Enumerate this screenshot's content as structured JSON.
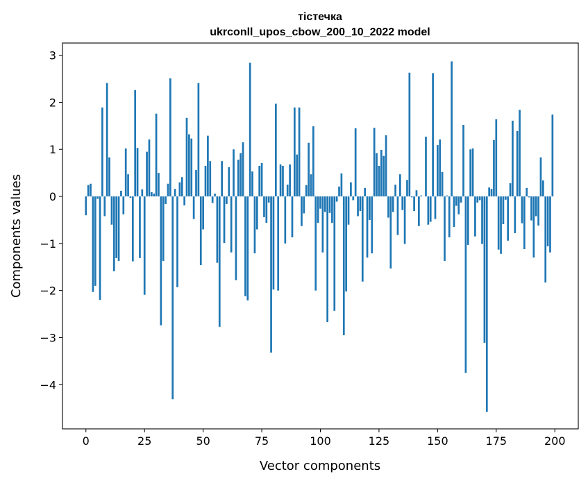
{
  "chart_data": {
    "type": "bar",
    "title": "тістечка",
    "subtitle": "ukrconll_upos_cbow_200_10_2022 model",
    "xlabel": "Vector components",
    "ylabel": "Components values",
    "xlim": [
      -10,
      210
    ],
    "ylim": [
      -4.94,
      3.26
    ],
    "xticks": [
      0,
      25,
      50,
      75,
      100,
      125,
      150,
      175,
      200
    ],
    "yticks": [
      -4,
      -3,
      -2,
      -1,
      0,
      1,
      2,
      3
    ],
    "xtick_labels": [
      "0",
      "25",
      "50",
      "75",
      "100",
      "125",
      "150",
      "175",
      "200"
    ],
    "ytick_labels": [
      "−4",
      "−3",
      "−2",
      "−1",
      "0",
      "1",
      "2",
      "3"
    ],
    "grid": false,
    "color": "#1f77b4",
    "values": [
      -0.4,
      0.24,
      0.27,
      -2.03,
      -1.9,
      -0.05,
      -2.2,
      1.89,
      -0.42,
      2.41,
      0.83,
      -0.6,
      -1.59,
      -1.31,
      -1.37,
      0.12,
      -0.38,
      1.02,
      0.47,
      -0.03,
      -1.38,
      2.26,
      1.03,
      -1.31,
      0.15,
      -2.09,
      0.95,
      1.21,
      0.09,
      0.06,
      1.76,
      0.5,
      -2.74,
      -1.37,
      -0.16,
      0.27,
      2.51,
      -4.31,
      0.16,
      -1.93,
      0.3,
      0.41,
      -0.19,
      1.67,
      1.32,
      1.23,
      -0.48,
      0.56,
      2.41,
      -1.46,
      -0.7,
      0.65,
      1.29,
      0.75,
      -0.14,
      0.06,
      -1.41,
      -2.77,
      0.75,
      -0.99,
      -0.16,
      0.62,
      -1.19,
      1.0,
      -1.78,
      0.78,
      0.92,
      1.15,
      -2.12,
      -2.21,
      2.84,
      0.53,
      -1.21,
      -0.7,
      0.65,
      0.71,
      -0.44,
      -0.56,
      -0.13,
      -3.32,
      -1.98,
      1.97,
      -2.0,
      0.68,
      0.65,
      -1.0,
      0.25,
      0.68,
      -0.87,
      1.89,
      0.89,
      1.89,
      -0.63,
      -0.36,
      0.24,
      1.14,
      0.47,
      1.49,
      -2.0,
      -0.56,
      -0.26,
      -1.19,
      -0.33,
      -2.67,
      -0.35,
      -0.56,
      -2.43,
      -0.11,
      0.21,
      0.49,
      -2.95,
      -2.02,
      -0.6,
      0.3,
      -0.08,
      1.45,
      -0.42,
      -0.31,
      -1.81,
      0.18,
      -1.3,
      -0.5,
      -1.21,
      1.46,
      0.92,
      0.65,
      0.99,
      0.86,
      1.3,
      -0.45,
      -1.53,
      -0.33,
      0.25,
      -0.82,
      0.47,
      -0.29,
      -1.01,
      0.35,
      2.63,
      -0.02,
      -0.31,
      0.13,
      -0.63,
      0.02,
      0.0,
      1.27,
      -0.6,
      -0.54,
      2.62,
      -0.48,
      1.09,
      1.21,
      0.52,
      -1.37,
      0.02,
      -0.87,
      2.87,
      -0.65,
      -0.2,
      -0.38,
      -0.13,
      1.52,
      -3.75,
      -1.03,
      1.0,
      1.02,
      -0.85,
      -0.13,
      -0.08,
      -1.01,
      -3.11,
      -4.58,
      0.19,
      0.16,
      1.2,
      1.64,
      -1.13,
      -1.22,
      -0.59,
      -0.07,
      -0.94,
      0.28,
      1.61,
      -0.78,
      1.39,
      1.84,
      -0.57,
      -1.12,
      0.18,
      -0.02,
      -0.51,
      -1.3,
      -0.42,
      -0.62,
      0.83,
      0.34,
      -1.83,
      -1.06,
      -1.19,
      1.74
    ]
  }
}
